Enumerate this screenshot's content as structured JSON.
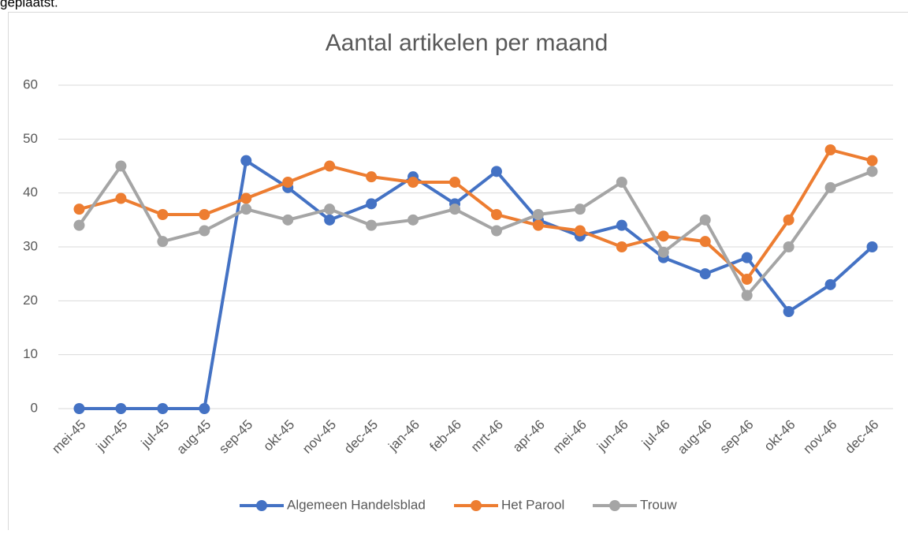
{
  "page_text": "geplaatst.",
  "chart_data": {
    "type": "line",
    "title": "Aantal artikelen per maand",
    "categories": [
      "mei-45",
      "jun-45",
      "jul-45",
      "aug-45",
      "sep-45",
      "okt-45",
      "nov-45",
      "dec-45",
      "jan-46",
      "feb-46",
      "mrt-46",
      "apr-46",
      "mei-46",
      "jun-46",
      "jul-46",
      "aug-46",
      "sep-46",
      "okt-46",
      "nov-46",
      "dec-46"
    ],
    "series": [
      {
        "name": "Algemeen Handelsblad",
        "color": "#4472c4",
        "values": [
          0,
          0,
          0,
          0,
          46,
          41,
          35,
          38,
          43,
          38,
          44,
          35,
          32,
          34,
          28,
          25,
          28,
          18,
          23,
          30
        ]
      },
      {
        "name": "Het Parool",
        "color": "#ed7d31",
        "values": [
          37,
          39,
          36,
          36,
          39,
          42,
          45,
          43,
          42,
          42,
          36,
          34,
          33,
          30,
          32,
          31,
          24,
          35,
          48,
          46
        ]
      },
      {
        "name": "Trouw",
        "color": "#a5a5a5",
        "values": [
          34,
          45,
          31,
          33,
          37,
          35,
          37,
          34,
          35,
          37,
          33,
          36,
          37,
          42,
          29,
          35,
          21,
          30,
          41,
          44
        ]
      }
    ],
    "ylim": [
      0,
      60
    ],
    "yticks": [
      0,
      10,
      20,
      30,
      40,
      50,
      60
    ],
    "grid": true,
    "legend": "bottom"
  }
}
